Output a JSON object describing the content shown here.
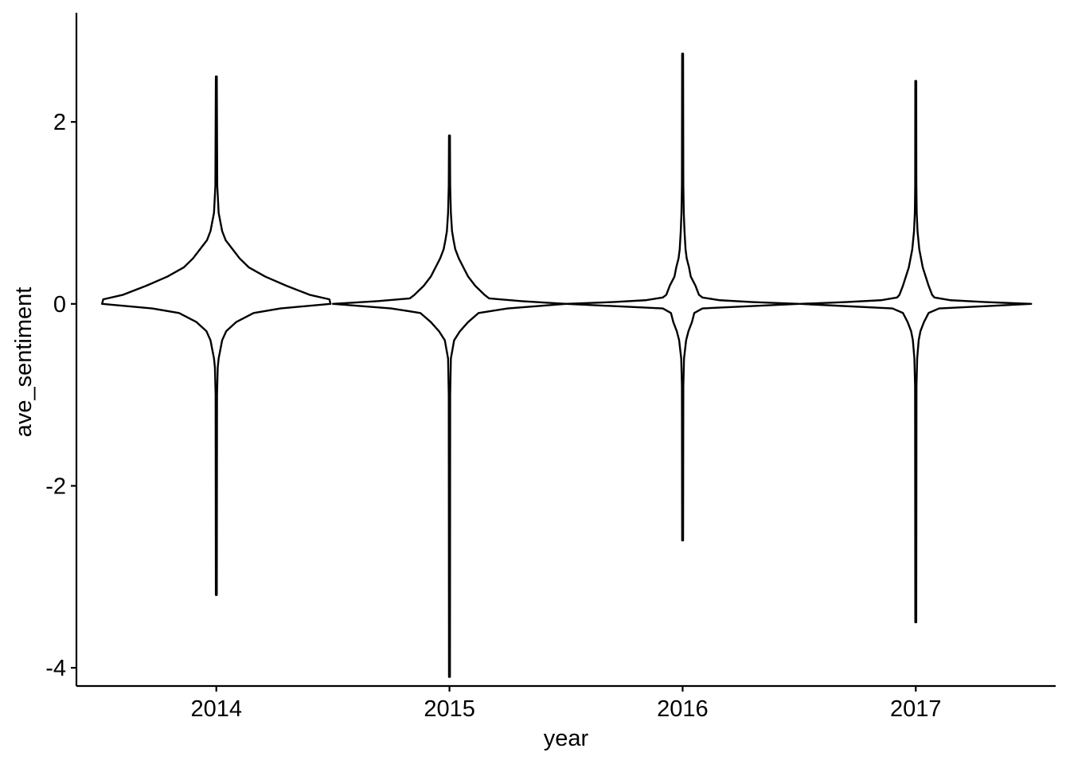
{
  "chart_data": {
    "type": "violin",
    "title": "",
    "xlabel": "year",
    "ylabel": "ave_sentiment",
    "categories": [
      "2014",
      "2015",
      "2016",
      "2017"
    ],
    "ylim": [
      -4.2,
      3.2
    ],
    "yticks": [
      2,
      0,
      -2,
      -4
    ],
    "ytick_labels": [
      "2",
      "0",
      "-2",
      "-4"
    ],
    "grid": false,
    "legend": "none",
    "line_color": "#000000",
    "fill_color": "#ffffff",
    "series": [
      {
        "category": "2014",
        "min": -3.2,
        "max": 2.5,
        "density_profile": [
          [
            -3.2,
            0.004
          ],
          [
            -1.0,
            0.006
          ],
          [
            -0.7,
            0.012
          ],
          [
            -0.6,
            0.02
          ],
          [
            -0.5,
            0.035
          ],
          [
            -0.4,
            0.05
          ],
          [
            -0.3,
            0.085
          ],
          [
            -0.2,
            0.17
          ],
          [
            -0.1,
            0.32
          ],
          [
            -0.05,
            0.55
          ],
          [
            0.0,
            0.98
          ],
          [
            0.05,
            0.97
          ],
          [
            0.1,
            0.8
          ],
          [
            0.2,
            0.6
          ],
          [
            0.3,
            0.42
          ],
          [
            0.4,
            0.28
          ],
          [
            0.5,
            0.2
          ],
          [
            0.6,
            0.14
          ],
          [
            0.7,
            0.08
          ],
          [
            0.8,
            0.05
          ],
          [
            1.0,
            0.02
          ],
          [
            1.3,
            0.008
          ],
          [
            2.5,
            0.004
          ]
        ]
      },
      {
        "category": "2015",
        "min": -4.1,
        "max": 1.85,
        "density_profile": [
          [
            -4.1,
            0.004
          ],
          [
            -1.0,
            0.006
          ],
          [
            -0.6,
            0.012
          ],
          [
            -0.4,
            0.04
          ],
          [
            -0.3,
            0.09
          ],
          [
            -0.2,
            0.16
          ],
          [
            -0.1,
            0.25
          ],
          [
            -0.05,
            0.5
          ],
          [
            0.0,
            1.0
          ],
          [
            0.03,
            0.62
          ],
          [
            0.06,
            0.34
          ],
          [
            0.1,
            0.3
          ],
          [
            0.2,
            0.22
          ],
          [
            0.3,
            0.16
          ],
          [
            0.4,
            0.12
          ],
          [
            0.5,
            0.08
          ],
          [
            0.6,
            0.05
          ],
          [
            0.7,
            0.035
          ],
          [
            0.8,
            0.022
          ],
          [
            1.0,
            0.012
          ],
          [
            1.3,
            0.006
          ],
          [
            1.85,
            0.004
          ]
        ]
      },
      {
        "category": "2016",
        "min": -2.6,
        "max": 2.75,
        "density_profile": [
          [
            -2.6,
            0.004
          ],
          [
            -0.9,
            0.006
          ],
          [
            -0.6,
            0.012
          ],
          [
            -0.4,
            0.03
          ],
          [
            -0.3,
            0.05
          ],
          [
            -0.2,
            0.08
          ],
          [
            -0.1,
            0.1
          ],
          [
            -0.05,
            0.17
          ],
          [
            0.0,
            1.0
          ],
          [
            0.02,
            0.6
          ],
          [
            0.04,
            0.32
          ],
          [
            0.07,
            0.17
          ],
          [
            0.1,
            0.14
          ],
          [
            0.2,
            0.11
          ],
          [
            0.3,
            0.07
          ],
          [
            0.4,
            0.055
          ],
          [
            0.5,
            0.035
          ],
          [
            0.6,
            0.025
          ],
          [
            0.8,
            0.016
          ],
          [
            1.0,
            0.01
          ],
          [
            1.3,
            0.006
          ],
          [
            2.75,
            0.004
          ]
        ]
      },
      {
        "category": "2017",
        "min": -3.5,
        "max": 2.45,
        "density_profile": [
          [
            -3.5,
            0.004
          ],
          [
            -0.9,
            0.006
          ],
          [
            -0.6,
            0.012
          ],
          [
            -0.4,
            0.025
          ],
          [
            -0.3,
            0.04
          ],
          [
            -0.2,
            0.07
          ],
          [
            -0.1,
            0.11
          ],
          [
            -0.05,
            0.2
          ],
          [
            0.0,
            0.99
          ],
          [
            0.02,
            0.6
          ],
          [
            0.04,
            0.3
          ],
          [
            0.07,
            0.16
          ],
          [
            0.1,
            0.14
          ],
          [
            0.2,
            0.11
          ],
          [
            0.3,
            0.085
          ],
          [
            0.4,
            0.06
          ],
          [
            0.5,
            0.045
          ],
          [
            0.6,
            0.03
          ],
          [
            0.8,
            0.015
          ],
          [
            1.0,
            0.008
          ],
          [
            1.3,
            0.005
          ],
          [
            2.45,
            0.004
          ]
        ]
      }
    ]
  }
}
